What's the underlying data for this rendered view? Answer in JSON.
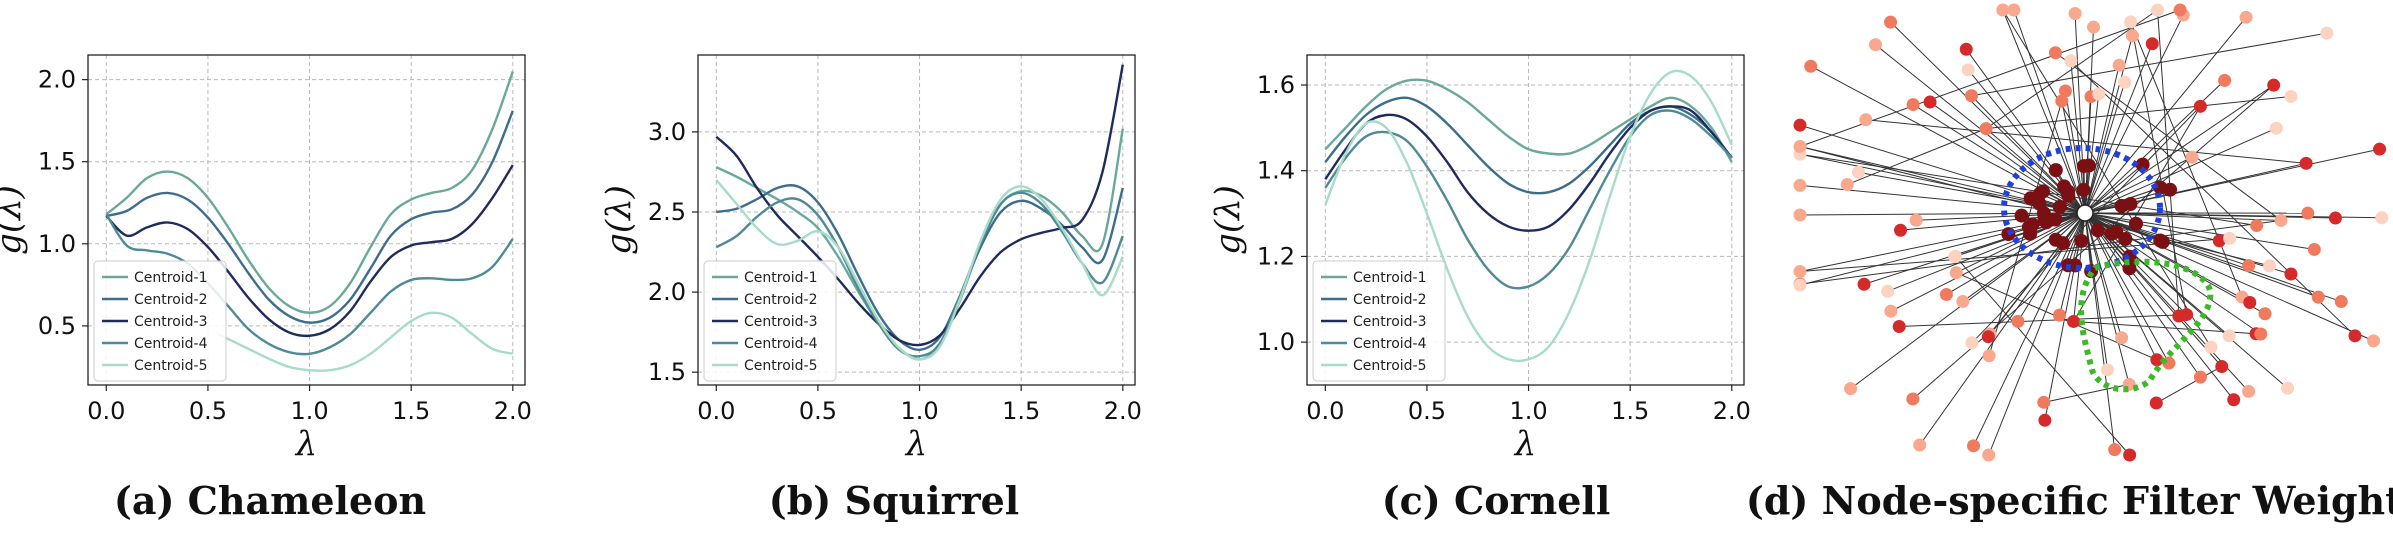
{
  "chart_data": [
    {
      "type": "line",
      "caption": "(a) Chameleon",
      "xlabel": "λ",
      "ylabel": "g(λ)",
      "xlim": [
        -0.09,
        2.06
      ],
      "ylim": [
        0.14,
        2.15
      ],
      "xticks": [
        0.0,
        0.5,
        1.0,
        1.5,
        2.0
      ],
      "xtick_labels": [
        "0.0",
        "0.5",
        "1.0",
        "1.5",
        "2.0"
      ],
      "yticks": [
        0.5,
        1.0,
        1.5,
        2.0
      ],
      "ytick_labels": [
        "0.5",
        "1.0",
        "1.5",
        "2.0"
      ],
      "grid": true,
      "legend_position": "bottom-left",
      "series": [
        {
          "name": "Centroid-1",
          "color": "#6aa89c",
          "x": [
            0,
            0.1,
            0.2,
            0.3,
            0.4,
            0.5,
            0.6,
            0.7,
            0.8,
            0.9,
            1.0,
            1.1,
            1.2,
            1.3,
            1.4,
            1.5,
            1.6,
            1.7,
            1.8,
            1.9,
            2.0
          ],
          "y": [
            1.18,
            1.28,
            1.4,
            1.44,
            1.4,
            1.28,
            1.1,
            0.9,
            0.73,
            0.62,
            0.58,
            0.62,
            0.76,
            0.98,
            1.18,
            1.27,
            1.31,
            1.34,
            1.45,
            1.7,
            2.05
          ]
        },
        {
          "name": "Centroid-2",
          "color": "#3d6d8c",
          "x": [
            0,
            0.1,
            0.2,
            0.3,
            0.4,
            0.5,
            0.6,
            0.7,
            0.8,
            0.9,
            1.0,
            1.1,
            1.2,
            1.3,
            1.4,
            1.5,
            1.6,
            1.7,
            1.8,
            1.9,
            2.0
          ],
          "y": [
            1.17,
            1.2,
            1.28,
            1.31,
            1.27,
            1.16,
            1.0,
            0.82,
            0.66,
            0.56,
            0.52,
            0.55,
            0.66,
            0.85,
            1.05,
            1.15,
            1.19,
            1.21,
            1.3,
            1.5,
            1.81
          ]
        },
        {
          "name": "Centroid-3",
          "color": "#1f2b5c",
          "x": [
            0,
            0.1,
            0.2,
            0.3,
            0.4,
            0.5,
            0.6,
            0.7,
            0.8,
            0.9,
            1.0,
            1.1,
            1.2,
            1.3,
            1.4,
            1.5,
            1.6,
            1.7,
            1.8,
            1.9,
            2.0
          ],
          "y": [
            1.17,
            1.05,
            1.1,
            1.13,
            1.09,
            0.98,
            0.83,
            0.67,
            0.54,
            0.46,
            0.44,
            0.48,
            0.59,
            0.77,
            0.92,
            0.99,
            1.01,
            1.03,
            1.12,
            1.28,
            1.48
          ]
        },
        {
          "name": "Centroid-4",
          "color": "#4f8a96",
          "x": [
            0,
            0.1,
            0.2,
            0.3,
            0.4,
            0.5,
            0.6,
            0.7,
            0.8,
            0.9,
            1.0,
            1.1,
            1.2,
            1.3,
            1.4,
            1.5,
            1.6,
            1.7,
            1.8,
            1.9,
            2.0
          ],
          "y": [
            1.18,
            0.99,
            0.96,
            0.94,
            0.88,
            0.76,
            0.62,
            0.48,
            0.39,
            0.34,
            0.33,
            0.37,
            0.45,
            0.58,
            0.71,
            0.78,
            0.79,
            0.78,
            0.79,
            0.86,
            1.03
          ]
        },
        {
          "name": "Centroid-5",
          "color": "#a7dcc6",
          "x": [
            0.55,
            0.6,
            0.7,
            0.8,
            0.9,
            1.0,
            1.1,
            1.2,
            1.3,
            1.4,
            1.5,
            1.6,
            1.7,
            1.8,
            1.9,
            2.0
          ],
          "y": [
            0.45,
            0.42,
            0.36,
            0.3,
            0.25,
            0.23,
            0.23,
            0.26,
            0.33,
            0.43,
            0.53,
            0.58,
            0.55,
            0.45,
            0.36,
            0.33
          ]
        }
      ]
    },
    {
      "type": "line",
      "caption": "(b) Squirrel",
      "xlabel": "λ",
      "ylabel": "g(λ)",
      "xlim": [
        -0.09,
        2.06
      ],
      "ylim": [
        1.42,
        3.48
      ],
      "xticks": [
        0.0,
        0.5,
        1.0,
        1.5,
        2.0
      ],
      "xtick_labels": [
        "0.0",
        "0.5",
        "1.0",
        "1.5",
        "2.0"
      ],
      "yticks": [
        1.5,
        2.0,
        2.5,
        3.0
      ],
      "ytick_labels": [
        "1.5",
        "2.0",
        "2.5",
        "3.0"
      ],
      "grid": true,
      "legend_position": "bottom-left",
      "series": [
        {
          "name": "Centroid-1",
          "color": "#6aa89c",
          "x": [
            0,
            0.1,
            0.2,
            0.3,
            0.4,
            0.5,
            0.6,
            0.7,
            0.8,
            0.9,
            1.0,
            1.1,
            1.2,
            1.3,
            1.4,
            1.5,
            1.6,
            1.7,
            1.8,
            1.9,
            2.0
          ],
          "y": [
            2.78,
            2.72,
            2.65,
            2.58,
            2.5,
            2.4,
            2.22,
            2.0,
            1.8,
            1.65,
            1.58,
            1.67,
            1.95,
            2.3,
            2.55,
            2.63,
            2.6,
            2.5,
            2.35,
            2.3,
            3.02
          ]
        },
        {
          "name": "Centroid-2",
          "color": "#3d6d8c",
          "x": [
            0,
            0.1,
            0.2,
            0.3,
            0.4,
            0.5,
            0.6,
            0.7,
            0.8,
            0.9,
            1.0,
            1.1,
            1.2,
            1.3,
            1.4,
            1.5,
            1.6,
            1.7,
            1.8,
            1.9,
            2.0
          ],
          "y": [
            2.5,
            2.52,
            2.58,
            2.65,
            2.66,
            2.56,
            2.36,
            2.1,
            1.86,
            1.7,
            1.64,
            1.72,
            1.98,
            2.28,
            2.5,
            2.57,
            2.52,
            2.42,
            2.28,
            2.2,
            2.65
          ]
        },
        {
          "name": "Centroid-3",
          "color": "#1f2b5c",
          "x": [
            0,
            0.1,
            0.2,
            0.3,
            0.4,
            0.5,
            0.6,
            0.7,
            0.8,
            0.9,
            1.0,
            1.1,
            1.2,
            1.3,
            1.4,
            1.5,
            1.6,
            1.7,
            1.8,
            1.9,
            2.0
          ],
          "y": [
            2.97,
            2.85,
            2.65,
            2.48,
            2.35,
            2.22,
            2.08,
            1.93,
            1.8,
            1.7,
            1.67,
            1.73,
            1.9,
            2.1,
            2.25,
            2.33,
            2.37,
            2.4,
            2.45,
            2.75,
            3.42
          ]
        },
        {
          "name": "Centroid-4",
          "color": "#4f8a96",
          "x": [
            0,
            0.1,
            0.2,
            0.3,
            0.4,
            0.5,
            0.6,
            0.7,
            0.8,
            0.9,
            1.0,
            1.1,
            1.2,
            1.3,
            1.4,
            1.5,
            1.6,
            1.7,
            1.8,
            1.9,
            2.0
          ],
          "y": [
            2.28,
            2.35,
            2.47,
            2.56,
            2.58,
            2.48,
            2.28,
            2.02,
            1.8,
            1.64,
            1.6,
            1.68,
            1.98,
            2.3,
            2.55,
            2.62,
            2.55,
            2.38,
            2.18,
            2.06,
            2.35
          ]
        },
        {
          "name": "Centroid-5",
          "color": "#a7dcc6",
          "x": [
            0,
            0.1,
            0.2,
            0.3,
            0.4,
            0.5,
            0.6,
            0.7,
            0.8,
            0.9,
            1.0,
            1.1,
            1.2,
            1.3,
            1.4,
            1.5,
            1.6,
            1.7,
            1.8,
            1.9,
            2.0
          ],
          "y": [
            2.7,
            2.55,
            2.4,
            2.3,
            2.32,
            2.38,
            2.28,
            2.05,
            1.82,
            1.65,
            1.58,
            1.66,
            1.96,
            2.32,
            2.58,
            2.66,
            2.58,
            2.4,
            2.18,
            1.98,
            2.22
          ]
        }
      ]
    },
    {
      "type": "line",
      "caption": "(c) Cornell",
      "xlabel": "λ",
      "ylabel": "g(λ)",
      "xlim": [
        -0.09,
        2.06
      ],
      "ylim": [
        0.9,
        1.67
      ],
      "xticks": [
        0.0,
        0.5,
        1.0,
        1.5,
        2.0
      ],
      "xtick_labels": [
        "0.0",
        "0.5",
        "1.0",
        "1.5",
        "2.0"
      ],
      "yticks": [
        1.0,
        1.2,
        1.4,
        1.6
      ],
      "ytick_labels": [
        "1.0",
        "1.2",
        "1.4",
        "1.6"
      ],
      "grid": true,
      "legend_position": "bottom-left",
      "series": [
        {
          "name": "Centroid-1",
          "color": "#6aa89c",
          "x": [
            0,
            0.1,
            0.2,
            0.3,
            0.4,
            0.5,
            0.6,
            0.7,
            0.8,
            0.9,
            1.0,
            1.1,
            1.2,
            1.3,
            1.4,
            1.5,
            1.6,
            1.7,
            1.8,
            1.9,
            2.0
          ],
          "y": [
            1.45,
            1.5,
            1.55,
            1.59,
            1.61,
            1.61,
            1.59,
            1.56,
            1.52,
            1.48,
            1.45,
            1.44,
            1.44,
            1.46,
            1.49,
            1.52,
            1.55,
            1.57,
            1.55,
            1.5,
            1.42
          ]
        },
        {
          "name": "Centroid-2",
          "color": "#3d6d8c",
          "x": [
            0,
            0.1,
            0.2,
            0.3,
            0.4,
            0.5,
            0.6,
            0.7,
            0.8,
            0.9,
            1.0,
            1.1,
            1.2,
            1.3,
            1.4,
            1.5,
            1.6,
            1.7,
            1.8,
            1.9,
            2.0
          ],
          "y": [
            1.42,
            1.48,
            1.53,
            1.56,
            1.57,
            1.55,
            1.51,
            1.46,
            1.41,
            1.37,
            1.35,
            1.35,
            1.37,
            1.41,
            1.46,
            1.51,
            1.54,
            1.55,
            1.53,
            1.49,
            1.43
          ]
        },
        {
          "name": "Centroid-3",
          "color": "#1f2b5c",
          "x": [
            0,
            0.1,
            0.2,
            0.3,
            0.4,
            0.5,
            0.6,
            0.7,
            0.8,
            0.9,
            1.0,
            1.1,
            1.2,
            1.3,
            1.4,
            1.5,
            1.6,
            1.7,
            1.8,
            1.9,
            2.0
          ],
          "y": [
            1.38,
            1.45,
            1.51,
            1.53,
            1.52,
            1.48,
            1.42,
            1.35,
            1.3,
            1.27,
            1.26,
            1.27,
            1.31,
            1.37,
            1.44,
            1.5,
            1.54,
            1.55,
            1.54,
            1.49,
            1.43
          ]
        },
        {
          "name": "Centroid-4",
          "color": "#4f8a96",
          "x": [
            0,
            0.1,
            0.2,
            0.3,
            0.4,
            0.5,
            0.6,
            0.7,
            0.8,
            0.9,
            1.0,
            1.1,
            1.2,
            1.3,
            1.4,
            1.5,
            1.6,
            1.7,
            1.8,
            1.9,
            2.0
          ],
          "y": [
            1.36,
            1.43,
            1.48,
            1.49,
            1.47,
            1.41,
            1.33,
            1.24,
            1.17,
            1.13,
            1.13,
            1.16,
            1.22,
            1.31,
            1.4,
            1.48,
            1.53,
            1.54,
            1.52,
            1.48,
            1.43
          ]
        },
        {
          "name": "Centroid-5",
          "color": "#a7dcc6",
          "x": [
            0,
            0.1,
            0.2,
            0.3,
            0.4,
            0.5,
            0.6,
            0.7,
            0.8,
            0.9,
            1.0,
            1.1,
            1.2,
            1.3,
            1.4,
            1.5,
            1.6,
            1.7,
            1.8,
            1.9,
            2.0
          ],
          "y": [
            1.32,
            1.44,
            1.51,
            1.5,
            1.42,
            1.3,
            1.17,
            1.06,
            0.99,
            0.96,
            0.96,
            0.99,
            1.07,
            1.19,
            1.34,
            1.48,
            1.58,
            1.63,
            1.62,
            1.56,
            1.46
          ]
        }
      ]
    }
  ],
  "network_panel": {
    "caption": "(d) Node-specific Filter Weights",
    "center_node_color": "#ffffff",
    "highlight_ring_colors": [
      "#1f3fe0",
      "#3cb828"
    ],
    "node_colors": [
      "#7a0f14",
      "#d42a2a",
      "#f07a5e",
      "#f9a88e",
      "#fcd2c0"
    ],
    "edge_color": "#333333"
  }
}
